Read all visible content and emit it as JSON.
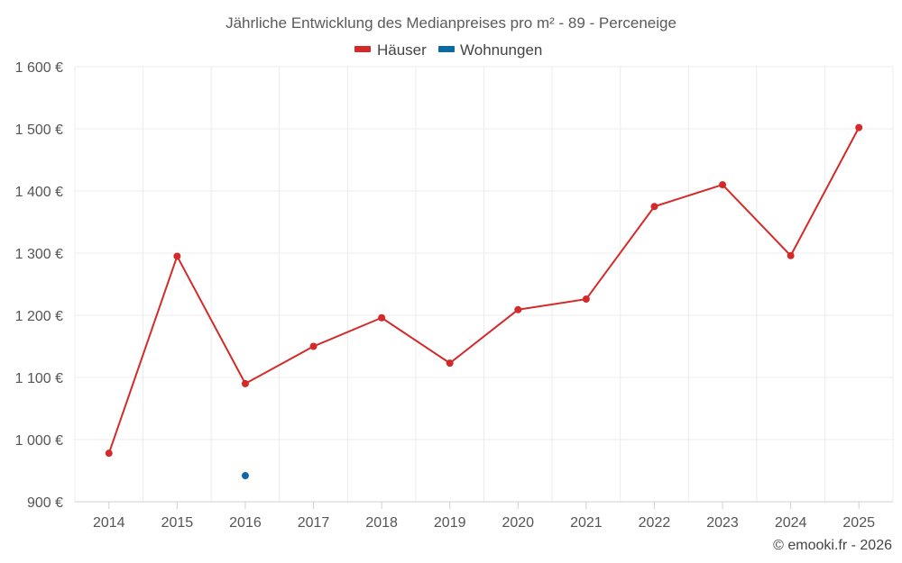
{
  "chart_data": {
    "type": "line",
    "title": "Jährliche Entwicklung des Medianpreises pro m² - 89 - Perceneige",
    "categories": [
      "2014",
      "2015",
      "2016",
      "2017",
      "2018",
      "2019",
      "2020",
      "2021",
      "2022",
      "2023",
      "2024",
      "2025"
    ],
    "ylim": [
      900,
      1600
    ],
    "yticks": [
      900,
      1000,
      1100,
      1200,
      1300,
      1400,
      1500,
      1600
    ],
    "ytick_labels": [
      "900 €",
      "1 000 €",
      "1 100 €",
      "1 200 €",
      "1 300 €",
      "1 400 €",
      "1 500 €",
      "1 600 €"
    ],
    "grid": true,
    "legend_position": "top-center",
    "series": [
      {
        "name": "Häuser",
        "color": "#d42a2a",
        "values": [
          978,
          1295,
          1090,
          1150,
          1196,
          1123,
          1209,
          1226,
          1375,
          1410,
          1296,
          1502
        ]
      },
      {
        "name": "Wohnungen",
        "color": "#0a6aa1",
        "values": [
          null,
          null,
          942,
          null,
          null,
          null,
          null,
          null,
          null,
          null,
          null,
          null
        ]
      }
    ]
  },
  "credit": "© emooki.fr - 2026"
}
